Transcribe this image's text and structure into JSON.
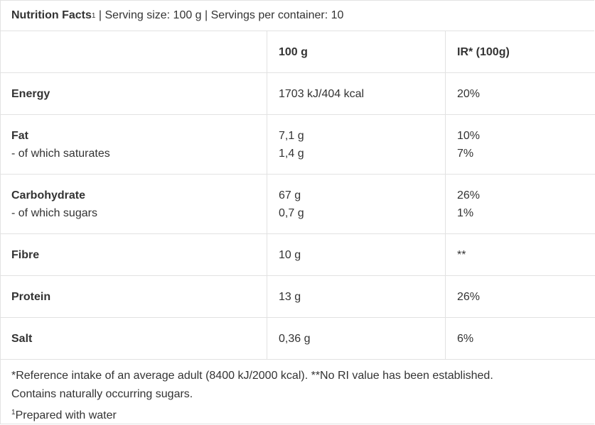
{
  "header": {
    "title": "Nutrition Facts",
    "title_sup": "1",
    "serving_info": " | Serving size: 100 g | Servings per container: 10"
  },
  "table": {
    "columns": [
      "",
      "100 g",
      "IR* (100g)"
    ],
    "rows": [
      {
        "nutrient": "Energy",
        "value": "1703 kJ/404 kcal",
        "ri": "20%"
      },
      {
        "nutrient": "Fat",
        "value": "7,1 g",
        "ri": "10%",
        "sub_nutrient": "- of which saturates",
        "sub_value": "1,4 g",
        "sub_ri": "7%"
      },
      {
        "nutrient": "Carbohydrate",
        "value": "67 g",
        "ri": "26%",
        "sub_nutrient": "- of which sugars",
        "sub_value": "0,7 g",
        "sub_ri": "1%"
      },
      {
        "nutrient": "Fibre",
        "value": "10 g",
        "ri": "**"
      },
      {
        "nutrient": "Protein",
        "value": "13 g",
        "ri": "26%"
      },
      {
        "nutrient": "Salt",
        "value": "0,36 g",
        "ri": "6%"
      }
    ]
  },
  "footer": {
    "reference_note": "*Reference intake of an average adult (8400 kJ/2000 kcal). **No RI value has been established.",
    "sugars_note": "Contains naturally occurring sugars.",
    "prepared_sup": "1",
    "prepared_note": "Prepared with water"
  }
}
